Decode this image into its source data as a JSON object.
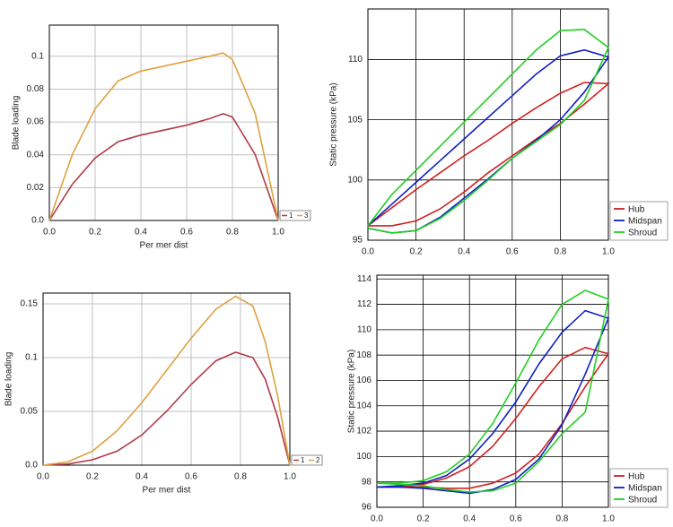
{
  "chart_data": [
    {
      "type": "line",
      "xlabel": "Per mer dist",
      "ylabel": "Blade loading",
      "x": [
        0,
        0.1,
        0.2,
        0.3,
        0.4,
        0.5,
        0.6,
        0.7,
        0.76,
        0.8,
        0.9,
        1.0
      ],
      "series": [
        {
          "name": "1",
          "color": "#b03a48",
          "values": [
            0,
            0.022,
            0.038,
            0.048,
            0.052,
            0.055,
            0.058,
            0.062,
            0.065,
            0.063,
            0.04,
            0
          ]
        },
        {
          "name": "3",
          "color": "#e0a040",
          "values": [
            0,
            0.04,
            0.068,
            0.085,
            0.091,
            0.094,
            0.097,
            0.1,
            0.102,
            0.098,
            0.065,
            0
          ]
        }
      ],
      "xlim": [
        0,
        1
      ],
      "ylim": [
        0,
        0.119
      ],
      "xticks": [
        {
          "value": 0,
          "label": "0.0"
        },
        0.2,
        0.4,
        0.6,
        0.8,
        {
          "value": 1,
          "label": "1.0"
        }
      ],
      "yticks": [
        {
          "value": 0,
          "label": "0.0"
        },
        0.02,
        0.04,
        0.06,
        0.08,
        0.1
      ],
      "grid": true,
      "grid_color": "#c0c0c0",
      "legend": "bottom-right"
    },
    {
      "type": "line",
      "ylabel": "Static pressure (kPa)",
      "x": [
        0,
        0.1,
        0.2,
        0.3,
        0.4,
        0.5,
        0.6,
        0.7,
        0.8,
        0.9,
        1.0,
        0.9,
        0.8,
        0.7,
        0.6,
        0.5,
        0.4,
        0.3,
        0.2,
        0.1,
        0
      ],
      "series": [
        {
          "name": "Hub",
          "color": "#d02020",
          "values": [
            96.2,
            97.7,
            99.2,
            100.6,
            102,
            103.3,
            104.7,
            106,
            107.2,
            108.1,
            108,
            106.3,
            104.7,
            103.4,
            102,
            100.6,
            99,
            97.6,
            96.6,
            96.2,
            96.2
          ]
        },
        {
          "name": "Midspan",
          "color": "#1020c0",
          "values": [
            96.2,
            98,
            99.8,
            101.6,
            103.4,
            105.2,
            107,
            108.8,
            110.3,
            110.8,
            110.2,
            107.3,
            105,
            103.3,
            101.8,
            100.1,
            98.5,
            96.9,
            95.8,
            95.6,
            96
          ]
        },
        {
          "name": "Shroud",
          "color": "#20d020",
          "values": [
            96.2,
            98.8,
            100.8,
            102.8,
            104.8,
            106.8,
            108.8,
            110.8,
            112.4,
            112.5,
            111,
            106.6,
            104.6,
            103.2,
            101.8,
            100,
            98.3,
            96.8,
            95.8,
            95.6,
            96
          ]
        }
      ],
      "xlim": [
        0,
        1
      ],
      "ylim": [
        95,
        114.2
      ],
      "xticks": [
        {
          "value": 0,
          "label": "0.0"
        },
        0.2,
        0.4,
        0.6,
        0.8,
        {
          "value": 1,
          "label": "1.0"
        }
      ],
      "yticks": [
        95,
        100,
        105,
        110
      ],
      "grid": true,
      "grid_color": "#000000",
      "legend": "bottom-right"
    },
    {
      "type": "line",
      "xlabel": "Per mer dist",
      "ylabel": "Blade loading",
      "x": [
        0,
        0.1,
        0.2,
        0.3,
        0.4,
        0.5,
        0.6,
        0.7,
        0.78,
        0.85,
        0.9,
        0.95,
        1.0
      ],
      "series": [
        {
          "name": "1",
          "color": "#b03a48",
          "values": [
            0,
            0.001,
            0.005,
            0.013,
            0.028,
            0.05,
            0.075,
            0.097,
            0.105,
            0.1,
            0.08,
            0.045,
            0
          ]
        },
        {
          "name": "2",
          "color": "#e0a040",
          "values": [
            0,
            0.003,
            0.013,
            0.032,
            0.058,
            0.088,
            0.118,
            0.145,
            0.157,
            0.148,
            0.115,
            0.065,
            0
          ]
        }
      ],
      "xlim": [
        0,
        1
      ],
      "ylim": [
        0,
        0.16
      ],
      "xticks": [
        {
          "value": 0,
          "label": "0.0"
        },
        0.2,
        0.4,
        0.6,
        0.8,
        {
          "value": 1,
          "label": "1.0"
        }
      ],
      "yticks": [
        {
          "value": 0,
          "label": "0.0"
        },
        0.05,
        0.1,
        0.15
      ],
      "grid": true,
      "grid_color": "#c0c0c0",
      "legend": "bottom-right"
    },
    {
      "type": "line",
      "ylabel": "Static pressure (kPa)",
      "x": [
        0,
        0.1,
        0.2,
        0.3,
        0.4,
        0.5,
        0.6,
        0.7,
        0.8,
        0.9,
        1.0,
        0.9,
        0.8,
        0.7,
        0.6,
        0.5,
        0.4,
        0.3,
        0.2,
        0.1,
        0
      ],
      "series": [
        {
          "name": "Hub",
          "color": "#d02020",
          "values": [
            97.6,
            97.6,
            97.8,
            98.3,
            99.2,
            100.8,
            103,
            105.5,
            107.7,
            108.6,
            108.1,
            105.5,
            102.6,
            100.2,
            98.7,
            97.9,
            97.5,
            97.5,
            97.6,
            97.6,
            97.6
          ]
        },
        {
          "name": "Midspan",
          "color": "#1020c0",
          "values": [
            97.6,
            97.7,
            97.9,
            98.5,
            99.8,
            101.8,
            104.3,
            107.3,
            109.8,
            111.5,
            110.9,
            106.5,
            102.5,
            99.8,
            98.2,
            97.4,
            97.1,
            97.3,
            97.5,
            97.6,
            97.6
          ]
        },
        {
          "name": "Shroud",
          "color": "#20d020",
          "values": [
            97.9,
            97.9,
            98.1,
            98.8,
            100.2,
            102.6,
            105.8,
            109.2,
            112,
            113.1,
            112.4,
            103.5,
            101.8,
            99.6,
            97.9,
            97.3,
            97.2,
            97.4,
            97.7,
            97.8,
            97.9
          ]
        }
      ],
      "xlim": [
        0,
        1
      ],
      "ylim": [
        96,
        114.3
      ],
      "xticks": [
        {
          "value": 0,
          "label": "0.0"
        },
        0.2,
        0.4,
        0.6,
        0.8,
        {
          "value": 1,
          "label": "1.0"
        }
      ],
      "yticks": [
        96,
        98,
        100,
        102,
        104,
        106,
        108,
        110,
        112,
        114
      ],
      "grid": true,
      "grid_color": "#000000",
      "legend": "bottom-right"
    }
  ]
}
